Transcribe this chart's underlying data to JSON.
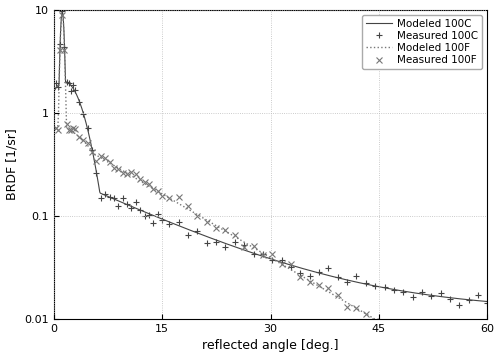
{
  "xlabel": "reflected angle [deg.]",
  "ylabel": "BRDF [1/sr]",
  "xlim": [
    0,
    60
  ],
  "ylim_log": [
    0.01,
    10
  ],
  "xticks": [
    0,
    15,
    30,
    45,
    60
  ],
  "grid_color": "#bbbbbb",
  "legend_entries": [
    "Modeled 100C",
    "Measured 100C",
    "Modeled 100F",
    "Measured 100F"
  ],
  "figsize": [
    5.0,
    3.58
  ],
  "dpi": 100
}
